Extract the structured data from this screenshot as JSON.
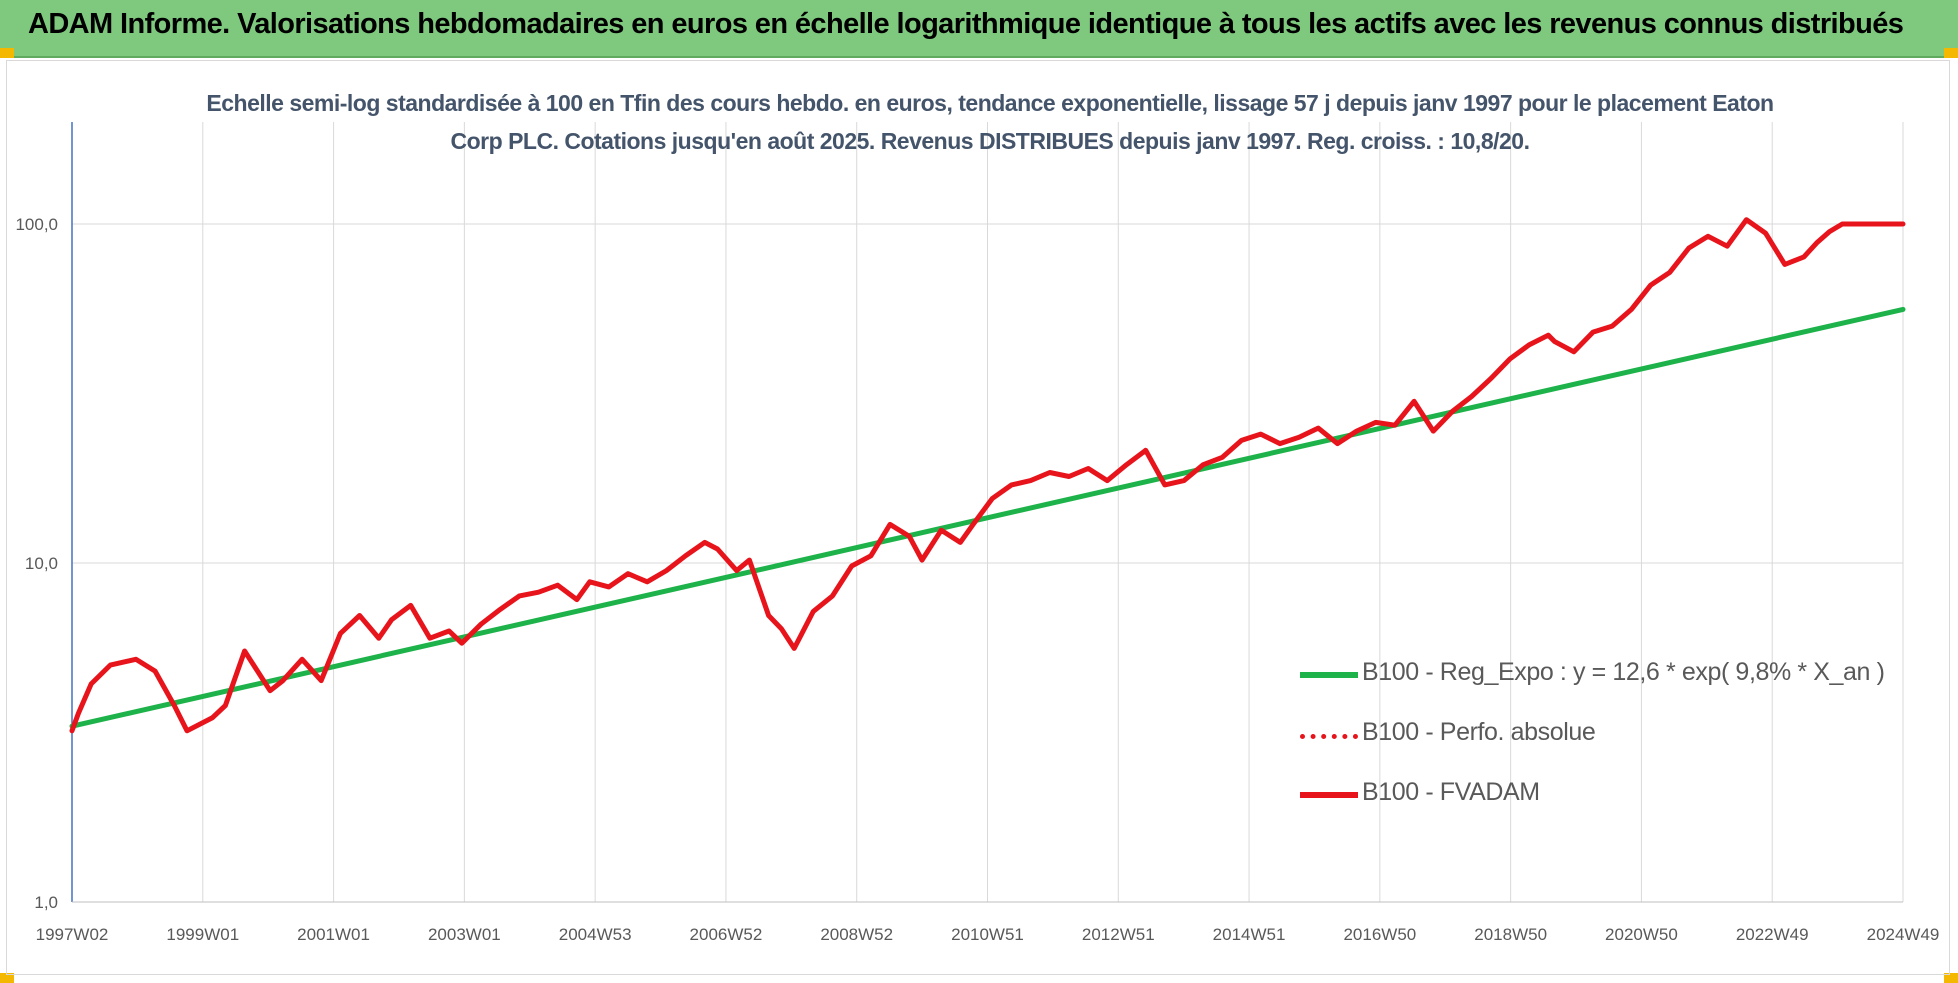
{
  "header": {
    "title": "ADAM Informe. Valorisations hebdomadaires en euros en échelle logarithmique identique à tous les actifs avec les revenus connus distribués"
  },
  "colors": {
    "header_bg": "#7fc97f",
    "trend": "#1db34a",
    "price": "#e8141c",
    "title_text": "#44546a",
    "grid": "#d9d9d9",
    "corner_marker": "#f5b800"
  },
  "chart_data": {
    "type": "line",
    "title": "Echelle semi-log standardisée à 100 en Tfin des cours hebdo. en euros, tendance exponentielle, lissage 57 j depuis janv 1997 pour le placement Eaton Corp PLC. Cotations jusqu'en août 2025. Revenus DISTRIBUES depuis janv 1997. Reg. croiss. : 10,8/20.",
    "xlabel": "",
    "ylabel": "",
    "y_scale": "log",
    "ylim": [
      1,
      200
    ],
    "xlim": [
      1997.0,
      2025.65
    ],
    "y_ticks": [
      "1,0",
      "10,0",
      "100,0"
    ],
    "x_tick_labels": [
      "1997W02",
      "1999W01",
      "2001W01",
      "2003W01",
      "2004W53",
      "2006W52",
      "2008W52",
      "2010W51",
      "2012W51",
      "2014W51",
      "2016W50",
      "2018W50",
      "2020W50",
      "2022W49",
      "2024W49"
    ],
    "grid": "vertical and horizontal",
    "legend_position": "right-center",
    "legend": [
      "B100 - Reg_Expo : y = 12,6 * exp( 9,8% * X_an )",
      "B100 - Perfo. absolue",
      "B100 - FVADAM"
    ],
    "series": [
      {
        "name": "B100 - Reg_Expo : y = 12,6 * exp( 9,8% * X_an )",
        "style": "solid-green",
        "x": [
          1997.0,
          2025.65
        ],
        "y": [
          3.3,
          56
        ]
      },
      {
        "name": "B100 - Perfo. absolue",
        "style": "dotted-red",
        "x": [],
        "y": []
      },
      {
        "name": "B100 - FVADAM",
        "style": "solid-red",
        "x": [
          1997.0,
          1997.1,
          1997.3,
          1997.6,
          1998.0,
          1998.3,
          1998.6,
          1998.8,
          1999.2,
          1999.4,
          1999.7,
          2000.1,
          2000.3,
          2000.6,
          2000.9,
          2001.2,
          2001.5,
          2001.8,
          2002.0,
          2002.3,
          2002.6,
          2002.9,
          2003.1,
          2003.4,
          2003.7,
          2004.0,
          2004.3,
          2004.6,
          2004.9,
          2005.1,
          2005.4,
          2005.7,
          2006.0,
          2006.3,
          2006.6,
          2006.9,
          2007.1,
          2007.4,
          2007.6,
          2007.9,
          2008.1,
          2008.3,
          2008.6,
          2008.9,
          2009.2,
          2009.5,
          2009.8,
          2010.1,
          2010.3,
          2010.6,
          2010.9,
          2011.1,
          2011.4,
          2011.7,
          2012.0,
          2012.3,
          2012.6,
          2012.9,
          2013.2,
          2013.5,
          2013.8,
          2014.1,
          2014.4,
          2014.7,
          2015.0,
          2015.3,
          2015.6,
          2015.9,
          2016.2,
          2016.5,
          2016.8,
          2017.1,
          2017.4,
          2017.7,
          2018.0,
          2018.3,
          2018.6,
          2018.9,
          2019.2,
          2019.5,
          2019.8,
          2020.1,
          2020.2,
          2020.5,
          2020.8,
          2021.1,
          2021.4,
          2021.7,
          2022.0,
          2022.3,
          2022.6,
          2022.9,
          2023.2,
          2023.5,
          2023.8,
          2024.1,
          2024.3,
          2024.5,
          2024.7,
          2024.9,
          2025.1,
          2025.3,
          2025.5,
          2025.65
        ],
        "y": [
          3.2,
          3.6,
          4.4,
          5.0,
          5.2,
          4.8,
          3.8,
          3.2,
          3.5,
          3.8,
          5.5,
          4.2,
          4.5,
          5.2,
          4.5,
          6.2,
          7.0,
          6.0,
          6.8,
          7.5,
          6.0,
          6.3,
          5.8,
          6.6,
          7.3,
          8.0,
          8.2,
          8.6,
          7.8,
          8.8,
          8.5,
          9.3,
          8.8,
          9.5,
          10.5,
          11.5,
          11.0,
          9.5,
          10.2,
          7.0,
          6.4,
          5.6,
          7.2,
          8.0,
          9.8,
          10.5,
          13.0,
          12.0,
          10.2,
          12.5,
          11.5,
          13.0,
          15.5,
          17.0,
          17.5,
          18.5,
          18.0,
          19.0,
          17.5,
          19.5,
          21.5,
          17.0,
          17.5,
          19.5,
          20.5,
          23.0,
          24.0,
          22.5,
          23.5,
          25.0,
          22.5,
          24.5,
          26.0,
          25.5,
          30.0,
          24.5,
          28.0,
          31.0,
          35.0,
          40.0,
          44.0,
          47.0,
          45.0,
          42.0,
          48.0,
          50.0,
          56.0,
          66.0,
          72.0,
          85.0,
          92.0,
          86.0,
          103.0,
          94.0,
          76.0,
          80.0,
          88.0,
          95.0,
          100.0,
          100.0,
          100.0,
          100.0,
          100.0,
          100.0
        ]
      }
    ]
  }
}
